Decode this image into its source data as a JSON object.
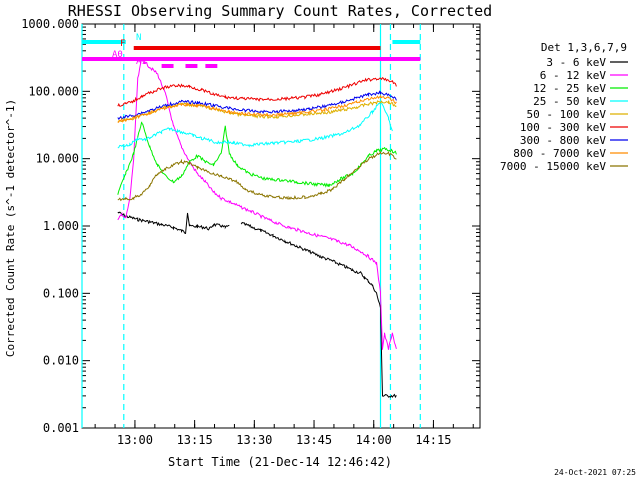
{
  "chart_data": {
    "type": "line",
    "title": "RHESSI Observing Summary Count Rates, Corrected",
    "xlabel": "Start Time (21-Dec-14 12:46:42)",
    "ylabel": "Corrected Count Rate (s^-1 detector^-1)",
    "yscale": "log",
    "ylim": [
      0.001,
      1000
    ],
    "xlim_minutes_after_start": [
      0,
      100
    ],
    "y_ticks": [
      "1000.000",
      "100.000",
      "10.000",
      "1.000",
      "0.100",
      "0.010",
      "0.001"
    ],
    "x_ticks": [
      {
        "label": "13:00",
        "min": 13.3
      },
      {
        "label": "13:15",
        "min": 28.3
      },
      {
        "label": "13:30",
        "min": 43.3
      },
      {
        "label": "13:45",
        "min": 58.3
      },
      {
        "label": "14:00",
        "min": 73.3
      },
      {
        "label": "14:15",
        "min": 88.3
      }
    ],
    "legend_title": "Det 1,3,6,7,9",
    "legend_position": "right",
    "series": [
      {
        "name": "3 - 6 keV",
        "color": "#000000",
        "points": [
          [
            9,
            1.6
          ],
          [
            11,
            1.4
          ],
          [
            14,
            1.25
          ],
          [
            17,
            1.15
          ],
          [
            20,
            1.05
          ],
          [
            23,
            0.95
          ],
          [
            25,
            0.85
          ],
          [
            26,
            0.8
          ],
          [
            26.5,
            1.6
          ],
          [
            27,
            1.0
          ],
          [
            29,
            0.98
          ],
          [
            31,
            0.95
          ],
          [
            32,
            0.9
          ],
          [
            33,
            1.05
          ],
          [
            35,
            1.0
          ],
          [
            36,
            0.95
          ],
          [
            37,
            1.0
          ],
          [
            37.5,
            null
          ],
          [
            40,
            1.1
          ],
          [
            42,
            1.0
          ],
          [
            45,
            0.85
          ],
          [
            48,
            0.72
          ],
          [
            51,
            0.6
          ],
          [
            54,
            0.5
          ],
          [
            57,
            0.42
          ],
          [
            60,
            0.35
          ],
          [
            63,
            0.3
          ],
          [
            66,
            0.25
          ],
          [
            68,
            0.22
          ],
          [
            70,
            0.2
          ],
          [
            71,
            0.17
          ],
          [
            72,
            0.15
          ],
          [
            73,
            0.13
          ],
          [
            74,
            0.1
          ],
          [
            75,
            0.06
          ],
          [
            75.5,
            0.003
          ],
          [
            79,
            0.003
          ]
        ]
      },
      {
        "name": "6 - 12 keV",
        "color": "#ff00ff",
        "points": [
          [
            9,
            1.2
          ],
          [
            10,
            1.5
          ],
          [
            11,
            1.3
          ],
          [
            12,
            2.5
          ],
          [
            13,
            10
          ],
          [
            14,
            150
          ],
          [
            15,
            300
          ],
          [
            17,
            230
          ],
          [
            19,
            180
          ],
          [
            21,
            90
          ],
          [
            23,
            30
          ],
          [
            25,
            15
          ],
          [
            27,
            9
          ],
          [
            29,
            6
          ],
          [
            31,
            4.5
          ],
          [
            33,
            3.2
          ],
          [
            35,
            2.6
          ],
          [
            37,
            2.3
          ],
          [
            40,
            1.9
          ],
          [
            43,
            1.6
          ],
          [
            46,
            1.3
          ],
          [
            49,
            1.1
          ],
          [
            52,
            0.95
          ],
          [
            55,
            0.85
          ],
          [
            58,
            0.75
          ],
          [
            61,
            0.68
          ],
          [
            64,
            0.6
          ],
          [
            67,
            0.52
          ],
          [
            70,
            0.42
          ],
          [
            72,
            0.35
          ],
          [
            74,
            0.28
          ],
          [
            75,
            0.1
          ],
          [
            75.5,
            0.015
          ],
          [
            76,
            0.025
          ],
          [
            77,
            0.015
          ],
          [
            78,
            0.025
          ],
          [
            79,
            0.015
          ]
        ]
      },
      {
        "name": "12 - 25 keV",
        "color": "#00ee00",
        "points": [
          [
            9,
            3
          ],
          [
            11,
            6
          ],
          [
            13,
            12
          ],
          [
            15,
            35
          ],
          [
            17,
            15
          ],
          [
            19,
            8
          ],
          [
            21,
            5.5
          ],
          [
            23,
            4.5
          ],
          [
            25,
            5.5
          ],
          [
            27,
            9
          ],
          [
            29,
            11
          ],
          [
            31,
            9
          ],
          [
            33,
            8
          ],
          [
            35,
            12
          ],
          [
            36,
            30
          ],
          [
            37,
            12
          ],
          [
            39,
            8
          ],
          [
            42,
            6
          ],
          [
            46,
            5
          ],
          [
            50,
            4.8
          ],
          [
            54,
            4.5
          ],
          [
            58,
            4.2
          ],
          [
            62,
            4
          ],
          [
            65,
            5
          ],
          [
            68,
            6
          ],
          [
            70,
            8
          ],
          [
            72,
            11
          ],
          [
            74,
            13
          ],
          [
            76,
            14
          ],
          [
            78,
            13
          ],
          [
            79,
            12
          ]
        ]
      },
      {
        "name": "25 - 50 keV",
        "color": "#00ffff",
        "points": [
          [
            9,
            15
          ],
          [
            12,
            16
          ],
          [
            14,
            20
          ],
          [
            16,
            19
          ],
          [
            18,
            22
          ],
          [
            20,
            25
          ],
          [
            22,
            28
          ],
          [
            24,
            26
          ],
          [
            26,
            24
          ],
          [
            28,
            22
          ],
          [
            30,
            20
          ],
          [
            32,
            19
          ],
          [
            34,
            17
          ],
          [
            36,
            18
          ],
          [
            38,
            17
          ],
          [
            42,
            16
          ],
          [
            48,
            17
          ],
          [
            54,
            18
          ],
          [
            60,
            20
          ],
          [
            66,
            24
          ],
          [
            70,
            32
          ],
          [
            73,
            50
          ],
          [
            75,
            70
          ],
          [
            77,
            40
          ],
          [
            78,
            25
          ]
        ]
      },
      {
        "name": "50 - 100 keV",
        "color": "#ddb000",
        "points": [
          [
            9,
            35
          ],
          [
            13,
            40
          ],
          [
            17,
            48
          ],
          [
            21,
            58
          ],
          [
            25,
            65
          ],
          [
            29,
            62
          ],
          [
            33,
            55
          ],
          [
            37,
            48
          ],
          [
            41,
            44
          ],
          [
            45,
            42
          ],
          [
            49,
            42
          ],
          [
            53,
            44
          ],
          [
            57,
            46
          ],
          [
            61,
            48
          ],
          [
            65,
            52
          ],
          [
            69,
            58
          ],
          [
            72,
            65
          ],
          [
            75,
            70
          ],
          [
            77,
            70
          ],
          [
            79,
            60
          ]
        ]
      },
      {
        "name": "100 - 300 keV",
        "color": "#ee0000",
        "points": [
          [
            9,
            62
          ],
          [
            11,
            65
          ],
          [
            13,
            72
          ],
          [
            15,
            85
          ],
          [
            18,
            100
          ],
          [
            21,
            115
          ],
          [
            24,
            122
          ],
          [
            27,
            118
          ],
          [
            30,
            105
          ],
          [
            33,
            90
          ],
          [
            36,
            82
          ],
          [
            40,
            78
          ],
          [
            44,
            76
          ],
          [
            48,
            76
          ],
          [
            52,
            78
          ],
          [
            56,
            82
          ],
          [
            60,
            90
          ],
          [
            64,
            105
          ],
          [
            68,
            125
          ],
          [
            71,
            145
          ],
          [
            74,
            155
          ],
          [
            76,
            150
          ],
          [
            78,
            140
          ],
          [
            79,
            120
          ]
        ]
      },
      {
        "name": "300 - 800 keV",
        "color": "#0000ee",
        "points": [
          [
            9,
            40
          ],
          [
            13,
            44
          ],
          [
            17,
            52
          ],
          [
            21,
            62
          ],
          [
            25,
            70
          ],
          [
            29,
            68
          ],
          [
            33,
            62
          ],
          [
            37,
            56
          ],
          [
            41,
            52
          ],
          [
            45,
            50
          ],
          [
            49,
            50
          ],
          [
            53,
            52
          ],
          [
            57,
            55
          ],
          [
            61,
            60
          ],
          [
            65,
            68
          ],
          [
            69,
            80
          ],
          [
            72,
            90
          ],
          [
            75,
            95
          ],
          [
            77,
            90
          ],
          [
            79,
            75
          ]
        ]
      },
      {
        "name": "800 - 7000 keV",
        "color": "#ff8c00",
        "points": [
          [
            9,
            36
          ],
          [
            13,
            40
          ],
          [
            17,
            48
          ],
          [
            21,
            57
          ],
          [
            25,
            64
          ],
          [
            29,
            62
          ],
          [
            33,
            56
          ],
          [
            37,
            50
          ],
          [
            41,
            46
          ],
          [
            45,
            45
          ],
          [
            49,
            45
          ],
          [
            53,
            47
          ],
          [
            57,
            50
          ],
          [
            61,
            53
          ],
          [
            65,
            60
          ],
          [
            69,
            68
          ],
          [
            72,
            78
          ],
          [
            75,
            82
          ],
          [
            77,
            78
          ],
          [
            79,
            68
          ]
        ]
      },
      {
        "name": "7000 - 15000 keV",
        "color": "#8b7500",
        "points": [
          [
            9,
            2.5
          ],
          [
            11,
            2.5
          ],
          [
            13,
            2.6
          ],
          [
            15,
            3
          ],
          [
            17,
            4
          ],
          [
            19,
            6
          ],
          [
            21,
            7
          ],
          [
            23,
            8
          ],
          [
            25,
            9
          ],
          [
            27,
            8.5
          ],
          [
            29,
            7.5
          ],
          [
            31,
            6.5
          ],
          [
            33,
            6
          ],
          [
            35,
            5.5
          ],
          [
            37,
            5
          ],
          [
            39,
            4.5
          ],
          [
            41,
            3.5
          ],
          [
            44,
            3
          ],
          [
            48,
            2.7
          ],
          [
            52,
            2.6
          ],
          [
            56,
            2.7
          ],
          [
            60,
            3
          ],
          [
            63,
            3.5
          ],
          [
            66,
            5
          ],
          [
            69,
            7
          ],
          [
            72,
            10
          ],
          [
            75,
            12
          ],
          [
            77,
            12
          ],
          [
            79,
            10
          ]
        ]
      }
    ],
    "state_bars": [
      {
        "label": "N",
        "color": "#00ffff",
        "segments": [
          [
            0,
            11
          ],
          [
            78,
            85
          ]
        ]
      },
      {
        "label": "F",
        "color": "#ee0000",
        "segments": [
          [
            13,
            75
          ]
        ]
      },
      {
        "label": "A0",
        "color": "#ff00ff",
        "segments": [
          [
            0,
            85
          ]
        ]
      },
      {
        "label": "A1",
        "color": "#ff00ff",
        "segments": [
          [
            20,
            23
          ],
          [
            26,
            29
          ],
          [
            31,
            34
          ]
        ]
      }
    ],
    "vertical_lines": [
      {
        "min": 10.5,
        "color": "#00ffff",
        "style": "dashed"
      },
      {
        "min": 77.5,
        "color": "#00ffff",
        "style": "dashed"
      },
      {
        "min": 0,
        "color": "#00ffff",
        "style": "solid"
      },
      {
        "min": 75,
        "color": "#00ffff",
        "style": "solid"
      },
      {
        "min": 85,
        "color": "#00ffff",
        "style": "dashed"
      }
    ]
  },
  "footer": {
    "timestamp": "24-Oct-2021 07:25"
  }
}
